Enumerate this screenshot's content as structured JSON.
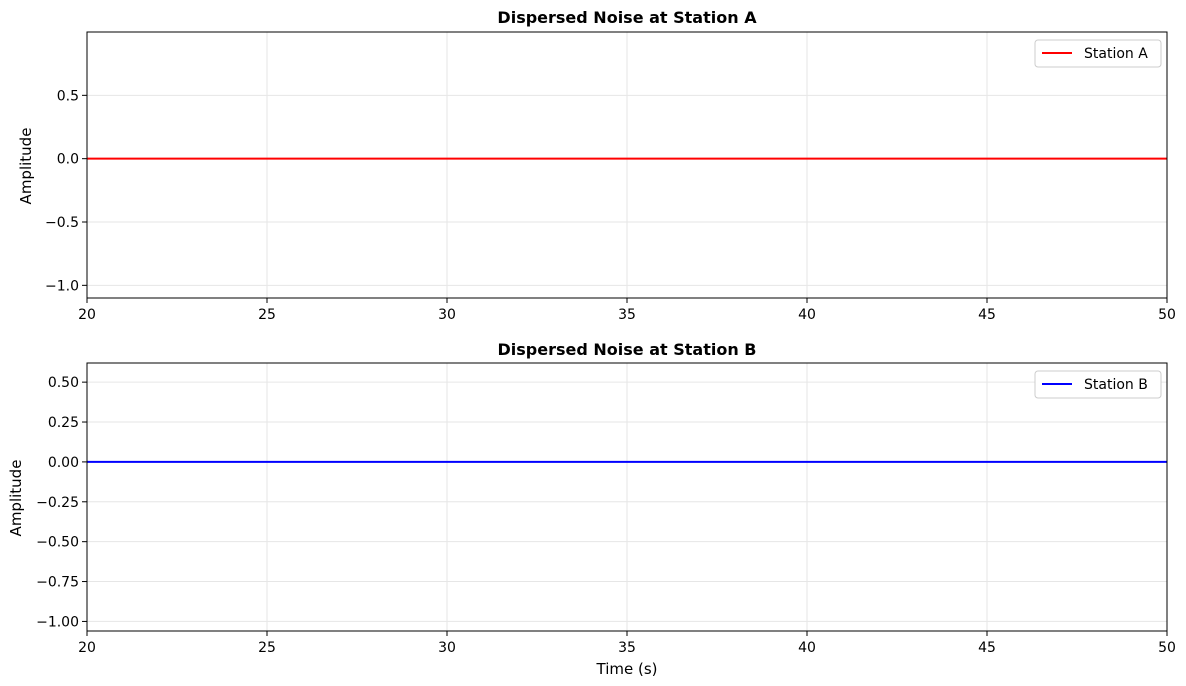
{
  "chart_data": [
    {
      "type": "line",
      "title": "Dispersed Noise at Station A",
      "xlabel": "",
      "ylabel": "Amplitude",
      "xlim": [
        20,
        50
      ],
      "ylim": [
        -1.1,
        1.0
      ],
      "xticks": [
        20,
        25,
        30,
        35,
        40,
        45,
        50
      ],
      "xtick_labels": [
        "20",
        "25",
        "30",
        "35",
        "40",
        "45",
        "50"
      ],
      "yticks": [
        -1.0,
        -0.5,
        0.0,
        0.5
      ],
      "ytick_labels": [
        "−1.0",
        "−0.5",
        "0.0",
        "0.5"
      ],
      "grid": true,
      "legend_position": "top-right",
      "series": [
        {
          "name": "Station A",
          "color": "#ff0000",
          "x": [
            20,
            50
          ],
          "y": [
            0,
            0
          ]
        }
      ]
    },
    {
      "type": "line",
      "title": "Dispersed Noise at Station B",
      "xlabel": "Time (s)",
      "ylabel": "Amplitude",
      "xlim": [
        20,
        50
      ],
      "ylim": [
        -1.06,
        0.62
      ],
      "xticks": [
        20,
        25,
        30,
        35,
        40,
        45,
        50
      ],
      "xtick_labels": [
        "20",
        "25",
        "30",
        "35",
        "40",
        "45",
        "50"
      ],
      "yticks": [
        -1.0,
        -0.75,
        -0.5,
        -0.25,
        0.0,
        0.25,
        0.5
      ],
      "ytick_labels": [
        "−1.00",
        "−0.75",
        "−0.50",
        "−0.25",
        "0.00",
        "0.25",
        "0.50"
      ],
      "grid": true,
      "legend_position": "top-right",
      "series": [
        {
          "name": "Station B",
          "color": "#0000ff",
          "x": [
            20,
            50
          ],
          "y": [
            0,
            0
          ]
        }
      ]
    }
  ]
}
